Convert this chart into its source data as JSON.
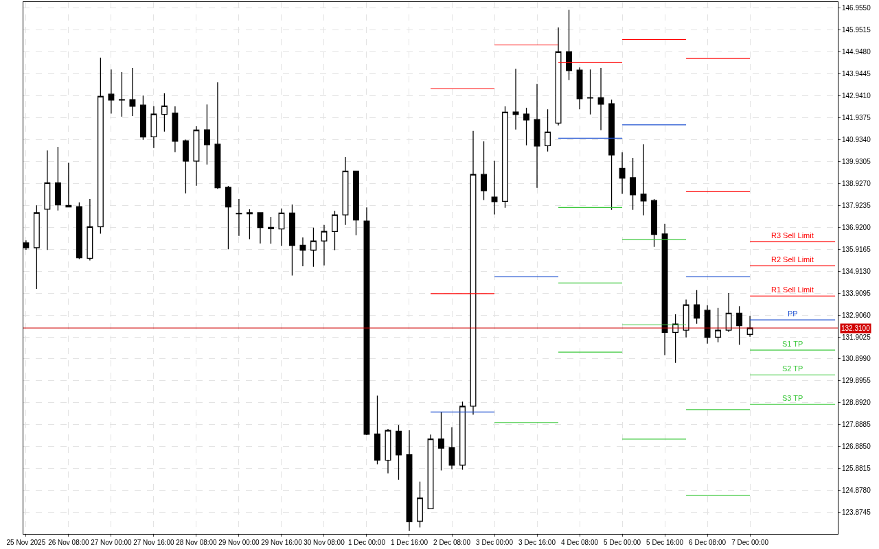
{
  "chart_data": {
    "type": "candlestick",
    "color": "#000000",
    "grid": true,
    "x": [
      "2025-11-25T16:00",
      "2025-11-25T20:00",
      "2025-11-26T00:00",
      "2025-11-26T04:00",
      "2025-11-26T08:00",
      "2025-11-26T12:00",
      "2025-11-26T16:00",
      "2025-11-26T20:00",
      "2025-11-27T00:00",
      "2025-11-27T04:00",
      "2025-11-27T08:00",
      "2025-11-27T12:00",
      "2025-11-27T16:00",
      "2025-11-27T20:00",
      "2025-11-28T00:00",
      "2025-11-28T04:00",
      "2025-11-28T08:00",
      "2025-11-28T12:00",
      "2025-11-28T16:00",
      "2025-11-28T20:00",
      "2025-11-29T00:00",
      "2025-11-29T04:00",
      "2025-11-29T08:00",
      "2025-11-29T12:00",
      "2025-11-29T16:00",
      "2025-11-29T20:00",
      "2025-11-30T00:00",
      "2025-11-30T04:00",
      "2025-11-30T08:00",
      "2025-11-30T12:00",
      "2025-11-30T16:00",
      "2025-11-30T20:00",
      "2025-12-01T00:00",
      "2025-12-01T04:00",
      "2025-12-01T08:00",
      "2025-12-01T12:00",
      "2025-12-01T16:00",
      "2025-12-01T20:00",
      "2025-12-02T00:00",
      "2025-12-02T04:00",
      "2025-12-02T08:00",
      "2025-12-02T12:00",
      "2025-12-02T16:00",
      "2025-12-02T20:00",
      "2025-12-03T00:00",
      "2025-12-03T04:00",
      "2025-12-03T08:00",
      "2025-12-03T12:00",
      "2025-12-03T16:00",
      "2025-12-03T20:00",
      "2025-12-04T00:00",
      "2025-12-04T04:00",
      "2025-12-04T08:00",
      "2025-12-04T12:00",
      "2025-12-04T16:00",
      "2025-12-04T20:00",
      "2025-12-05T00:00",
      "2025-12-05T04:00",
      "2025-12-05T08:00",
      "2025-12-05T12:00",
      "2025-12-05T16:00",
      "2025-12-05T20:00",
      "2025-12-06T00:00",
      "2025-12-06T04:00",
      "2025-12-06T08:00",
      "2025-12-06T12:00",
      "2025-12-06T16:00",
      "2025-12-06T20:00",
      "2025-12-07T00:00"
    ],
    "ohlc": [
      [
        136.2,
        136.32,
        135.89,
        135.98
      ],
      [
        135.98,
        137.92,
        134.1,
        137.58
      ],
      [
        137.74,
        140.43,
        135.88,
        138.95
      ],
      [
        138.95,
        140.59,
        137.68,
        137.94
      ],
      [
        137.91,
        139.87,
        137.83,
        137.84
      ],
      [
        137.86,
        138.05,
        135.46,
        135.52
      ],
      [
        135.5,
        138.21,
        135.4,
        136.94
      ],
      [
        136.94,
        144.67,
        136.62,
        142.9
      ],
      [
        143.0,
        144.13,
        142.11,
        142.73
      ],
      [
        142.75,
        144.01,
        141.97,
        142.73
      ],
      [
        142.75,
        144.2,
        142.0,
        142.45
      ],
      [
        142.5,
        142.94,
        140.91,
        141.04
      ],
      [
        141.05,
        142.45,
        140.54,
        142.09
      ],
      [
        142.08,
        143.04,
        141.29,
        142.46
      ],
      [
        142.13,
        142.44,
        140.35,
        140.85
      ],
      [
        140.87,
        140.92,
        138.47,
        139.94
      ],
      [
        139.94,
        141.53,
        138.81,
        141.36
      ],
      [
        141.37,
        142.53,
        139.78,
        140.69
      ],
      [
        140.71,
        143.54,
        138.67,
        138.72
      ],
      [
        138.74,
        138.8,
        135.91,
        137.84
      ],
      [
        137.55,
        138.21,
        136.52,
        137.53
      ],
      [
        137.58,
        137.74,
        136.37,
        137.53
      ],
      [
        137.58,
        137.58,
        136.18,
        136.9
      ],
      [
        136.91,
        137.39,
        136.17,
        136.85
      ],
      [
        136.84,
        137.78,
        136.07,
        137.57
      ],
      [
        137.57,
        137.96,
        134.71,
        136.09
      ],
      [
        136.09,
        136.45,
        135.13,
        135.87
      ],
      [
        135.87,
        136.9,
        135.11,
        136.29
      ],
      [
        136.29,
        137.02,
        135.17,
        136.73
      ],
      [
        136.72,
        137.67,
        135.87,
        137.48
      ],
      [
        137.48,
        140.12,
        137.02,
        139.48
      ],
      [
        139.48,
        139.48,
        136.55,
        137.25
      ],
      [
        137.2,
        137.82,
        127.42,
        127.45
      ],
      [
        127.47,
        129.22,
        126.08,
        126.27
      ],
      [
        126.27,
        127.7,
        125.67,
        127.63
      ],
      [
        127.59,
        127.88,
        125.38,
        126.51
      ],
      [
        126.52,
        127.64,
        123.03,
        123.45
      ],
      [
        123.48,
        125.29,
        123.2,
        124.54
      ],
      [
        124.05,
        127.44,
        124.05,
        127.24
      ],
      [
        127.24,
        128.47,
        125.8,
        126.82
      ],
      [
        126.85,
        127.78,
        125.86,
        126.04
      ],
      [
        126.04,
        128.95,
        125.83,
        128.74
      ],
      [
        128.74,
        141.32,
        128.35,
        139.33
      ],
      [
        139.33,
        140.84,
        138.16,
        138.59
      ],
      [
        138.3,
        139.96,
        137.5,
        138.09
      ],
      [
        138.1,
        142.44,
        137.81,
        142.18
      ],
      [
        142.19,
        144.16,
        141.38,
        142.07
      ],
      [
        142.09,
        142.38,
        140.66,
        141.82
      ],
      [
        141.84,
        143.47,
        138.72,
        140.63
      ],
      [
        140.64,
        142.31,
        140.38,
        141.27
      ],
      [
        141.68,
        146.05,
        141.57,
        144.94
      ],
      [
        144.94,
        146.86,
        143.64,
        144.08
      ],
      [
        144.1,
        144.22,
        142.31,
        142.79
      ],
      [
        142.84,
        144.13,
        142.07,
        142.82
      ],
      [
        142.84,
        144.2,
        141.35,
        142.54
      ],
      [
        142.56,
        142.75,
        137.71,
        140.22
      ],
      [
        139.61,
        140.34,
        138.44,
        139.16
      ],
      [
        139.18,
        140.09,
        137.71,
        138.4
      ],
      [
        138.43,
        140.71,
        137.46,
        138.12
      ],
      [
        138.14,
        138.21,
        136.02,
        136.59
      ],
      [
        136.61,
        137.08,
        131.07,
        132.11
      ],
      [
        132.11,
        132.94,
        130.72,
        132.49
      ],
      [
        132.21,
        133.61,
        131.88,
        133.37
      ],
      [
        133.37,
        134.04,
        132.51,
        132.76
      ],
      [
        133.12,
        133.35,
        131.6,
        131.88
      ],
      [
        131.89,
        133.23,
        131.66,
        132.21
      ],
      [
        132.21,
        133.91,
        132.13,
        132.99
      ],
      [
        132.99,
        133.31,
        131.54,
        132.42
      ],
      [
        132.02,
        132.87,
        131.91,
        132.31
      ]
    ],
    "series": [
      {
        "type": "line",
        "color": "#ff0000",
        "x": [
          "2025-12-02T00:00",
          "2025-12-03T00:00"
        ],
        "values": [
          143.25,
          143.25
        ]
      },
      {
        "type": "line",
        "color": "#ff0000",
        "x": [
          "2025-12-02T00:00",
          "2025-12-03T00:00"
        ],
        "values": [
          133.88,
          133.88
        ]
      },
      {
        "type": "line",
        "color": "#ff0000",
        "x": [
          "2025-12-03T00:00",
          "2025-12-04T00:00"
        ],
        "values": [
          145.25,
          145.25
        ]
      },
      {
        "type": "line",
        "color": "#ff0000",
        "x": [
          "2025-12-04T00:00",
          "2025-12-05T00:00"
        ],
        "values": [
          144.44,
          144.44
        ]
      },
      {
        "type": "line",
        "color": "#ff0000",
        "x": [
          "2025-12-05T00:00",
          "2025-12-06T00:00"
        ],
        "values": [
          145.5,
          145.5
        ]
      },
      {
        "type": "line",
        "color": "#ff0000",
        "x": [
          "2025-12-06T00:00",
          "2025-12-07T00:00"
        ],
        "values": [
          144.63,
          144.63
        ]
      },
      {
        "type": "line",
        "color": "#ff0000",
        "x": [
          "2025-12-06T00:00",
          "2025-12-07T00:00"
        ],
        "values": [
          138.54,
          138.54
        ]
      },
      {
        "type": "line",
        "color": "#1e50d0",
        "x": [
          "2025-12-02T00:00",
          "2025-12-03T00:00"
        ],
        "values": [
          128.47,
          128.47
        ]
      },
      {
        "type": "line",
        "color": "#1e50d0",
        "x": [
          "2025-12-03T00:00",
          "2025-12-04T00:00"
        ],
        "values": [
          134.65,
          134.65
        ]
      },
      {
        "type": "line",
        "color": "#1e50d0",
        "x": [
          "2025-12-04T00:00",
          "2025-12-05T00:00"
        ],
        "values": [
          140.99,
          140.99
        ]
      },
      {
        "type": "line",
        "color": "#1e50d0",
        "x": [
          "2025-12-05T00:00",
          "2025-12-06T00:00"
        ],
        "values": [
          141.6,
          141.6
        ]
      },
      {
        "type": "line",
        "color": "#1e50d0",
        "x": [
          "2025-12-06T00:00",
          "2025-12-07T00:00"
        ],
        "values": [
          134.65,
          134.65
        ]
      },
      {
        "type": "line",
        "color": "#3cc83c",
        "x": [
          "2025-12-03T00:00",
          "2025-12-04T00:00"
        ],
        "values": [
          127.99,
          127.99
        ]
      },
      {
        "type": "line",
        "color": "#3cc83c",
        "x": [
          "2025-12-04T00:00",
          "2025-12-05T00:00"
        ],
        "values": [
          137.82,
          137.82
        ]
      },
      {
        "type": "line",
        "color": "#3cc83c",
        "x": [
          "2025-12-04T00:00",
          "2025-12-05T00:00"
        ],
        "values": [
          134.37,
          134.37
        ]
      },
      {
        "type": "line",
        "color": "#3cc83c",
        "x": [
          "2025-12-04T00:00",
          "2025-12-05T00:00"
        ],
        "values": [
          131.21,
          131.21
        ]
      },
      {
        "type": "line",
        "color": "#3cc83c",
        "x": [
          "2025-12-05T00:00",
          "2025-12-06T00:00"
        ],
        "values": [
          136.35,
          136.35
        ]
      },
      {
        "type": "line",
        "color": "#3cc83c",
        "x": [
          "2025-12-05T00:00",
          "2025-12-06T00:00"
        ],
        "values": [
          132.46,
          132.46
        ]
      },
      {
        "type": "line",
        "color": "#3cc83c",
        "x": [
          "2025-12-05T00:00",
          "2025-12-06T00:00"
        ],
        "values": [
          127.23,
          127.23
        ]
      },
      {
        "type": "line",
        "color": "#3cc83c",
        "x": [
          "2025-12-06T00:00",
          "2025-12-07T00:00"
        ],
        "values": [
          128.58,
          128.58
        ]
      },
      {
        "type": "line",
        "color": "#3cc83c",
        "x": [
          "2025-12-06T00:00",
          "2025-12-07T00:00"
        ],
        "values": [
          124.66,
          124.66
        ]
      },
      {
        "type": "line",
        "name": "R3 Sell Limit",
        "color": "#ff0000",
        "x": [
          "2025-12-07T00:00",
          "2025-12-08T08:00"
        ],
        "values": [
          136.26,
          136.26
        ]
      },
      {
        "type": "line",
        "name": "R2 Sell Limit",
        "color": "#ff0000",
        "x": [
          "2025-12-07T00:00",
          "2025-12-08T08:00"
        ],
        "values": [
          135.15,
          135.15
        ]
      },
      {
        "type": "line",
        "name": "R1 Sell Limit",
        "color": "#ff0000",
        "x": [
          "2025-12-07T00:00",
          "2025-12-08T08:00"
        ],
        "values": [
          133.77,
          133.77
        ]
      },
      {
        "type": "line",
        "name": "PP",
        "color": "#1e50d0",
        "x": [
          "2025-12-07T00:00",
          "2025-12-08T08:00"
        ],
        "values": [
          132.68,
          132.68
        ]
      },
      {
        "type": "line",
        "name": "S1 TP",
        "color": "#3cc83c",
        "x": [
          "2025-12-07T00:00",
          "2025-12-08T08:00"
        ],
        "values": [
          131.3,
          131.3
        ]
      },
      {
        "type": "line",
        "name": "S2 TP",
        "color": "#3cc83c",
        "x": [
          "2025-12-07T00:00",
          "2025-12-08T08:00"
        ],
        "values": [
          130.17,
          130.17
        ]
      },
      {
        "type": "line",
        "name": "S3 TP",
        "color": "#3cc83c",
        "x": [
          "2025-12-07T00:00",
          "2025-12-08T08:00"
        ],
        "values": [
          128.82,
          128.82
        ]
      }
    ],
    "ref_lines": [
      {
        "axis": "y",
        "value": 132.31,
        "label": "132.3100",
        "color": "#d00000"
      }
    ],
    "xlim": [
      "2025-11-25T15:00",
      "2025-12-08T09:00"
    ],
    "ylim": [
      122.9,
      147.21
    ],
    "xticks": [
      {
        "value": "2025-11-25T16:00",
        "label": "25 Nov 2025"
      },
      {
        "value": "2025-11-26T08:00",
        "label": "26 Nov 08:00"
      },
      {
        "value": "2025-11-27T00:00",
        "label": "27 Nov 00:00"
      },
      {
        "value": "2025-11-27T16:00",
        "label": "27 Nov 16:00"
      },
      {
        "value": "2025-11-28T08:00",
        "label": "28 Nov 08:00"
      },
      {
        "value": "2025-11-29T00:00",
        "label": "29 Nov 00:00"
      },
      {
        "value": "2025-11-29T16:00",
        "label": "29 Nov 16:00"
      },
      {
        "value": "2025-11-30T08:00",
        "label": "30 Nov 08:00"
      },
      {
        "value": "2025-12-01T00:00",
        "label": "1 Dec 00:00"
      },
      {
        "value": "2025-12-01T16:00",
        "label": "1 Dec 16:00"
      },
      {
        "value": "2025-12-02T08:00",
        "label": "2 Dec 08:00"
      },
      {
        "value": "2025-12-03T00:00",
        "label": "3 Dec 00:00"
      },
      {
        "value": "2025-12-03T16:00",
        "label": "3 Dec 16:00"
      },
      {
        "value": "2025-12-04T08:00",
        "label": "4 Dec 08:00"
      },
      {
        "value": "2025-12-05T00:00",
        "label": "5 Dec 00:00"
      },
      {
        "value": "2025-12-05T16:00",
        "label": "5 Dec 16:00"
      },
      {
        "value": "2025-12-06T08:00",
        "label": "6 Dec 08:00"
      },
      {
        "value": "2025-12-07T00:00",
        "label": "7 Dec 00:00"
      }
    ],
    "yticks": [
      {
        "value": 146.955,
        "label": "146.9550"
      },
      {
        "value": 145.9515,
        "label": "145.9515"
      },
      {
        "value": 144.948,
        "label": "144.9480"
      },
      {
        "value": 143.9445,
        "label": "143.9445"
      },
      {
        "value": 142.941,
        "label": "142.9410"
      },
      {
        "value": 141.9375,
        "label": "141.9375"
      },
      {
        "value": 140.934,
        "label": "140.9340"
      },
      {
        "value": 139.9305,
        "label": "139.9305"
      },
      {
        "value": 138.927,
        "label": "138.9270"
      },
      {
        "value": 137.9235,
        "label": "137.9235"
      },
      {
        "value": 136.92,
        "label": "136.9200"
      },
      {
        "value": 135.9165,
        "label": "135.9165"
      },
      {
        "value": 134.913,
        "label": "134.9130"
      },
      {
        "value": 133.9095,
        "label": "133.9095"
      },
      {
        "value": 132.906,
        "label": "132.9060"
      },
      {
        "value": 131.9025,
        "label": "131.9025"
      },
      {
        "value": 130.899,
        "label": "130.8990"
      },
      {
        "value": 129.8955,
        "label": "129.8955"
      },
      {
        "value": 128.892,
        "label": "128.8920"
      },
      {
        "value": 127.8885,
        "label": "127.8885"
      },
      {
        "value": 126.885,
        "label": "126.8850"
      },
      {
        "value": 125.8815,
        "label": "125.8815"
      },
      {
        "value": 124.878,
        "label": "124.8780"
      },
      {
        "value": 123.8745,
        "label": "123.8745"
      }
    ]
  }
}
